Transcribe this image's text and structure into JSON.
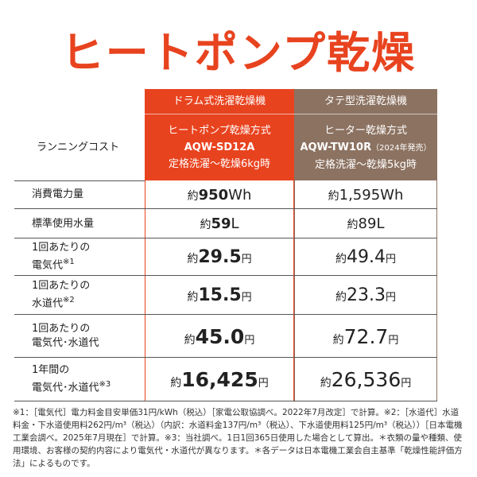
{
  "title": "ヒートポンプ乾燥",
  "table": {
    "corner": "ランニングコスト",
    "columns": [
      {
        "type": "ドラム式洗濯乾燥機",
        "method": "ヒートポンプ乾燥方式",
        "model": "AQW-SD12A",
        "condition": "定格洗濯～乾燥6kg時"
      },
      {
        "type": "タテ型洗濯乾燥機",
        "method": "ヒーター乾燥方式",
        "model": "AQW-TW10R",
        "model_note": "（2024年発売）",
        "condition": "定格洗濯～乾燥5kg時"
      }
    ],
    "rows": [
      {
        "label": [
          "消費電力量"
        ],
        "cells": [
          {
            "prefix": "約",
            "value": "950",
            "unit": "Wh"
          },
          {
            "prefix": "約",
            "value": "1,595",
            "unit": "Wh"
          }
        ]
      },
      {
        "label": [
          "標準使用水量"
        ],
        "cells": [
          {
            "prefix": "約",
            "value": "59",
            "unit": "L"
          },
          {
            "prefix": "約",
            "value": "89",
            "unit": "L"
          }
        ]
      },
      {
        "label": [
          "1回あたりの",
          "電気代"
        ],
        "note": "※1",
        "cells": [
          {
            "prefix": "約",
            "value": "29.5",
            "unit": "円"
          },
          {
            "prefix": "約",
            "value": "49.4",
            "unit": "円"
          }
        ]
      },
      {
        "label": [
          "1回あたりの",
          "水道代"
        ],
        "note": "※2",
        "cells": [
          {
            "prefix": "約",
            "value": "15.5",
            "unit": "円"
          },
          {
            "prefix": "約",
            "value": "23.3",
            "unit": "円"
          }
        ]
      },
      {
        "label": [
          "1回あたりの",
          "電気代･水道代"
        ],
        "cells": [
          {
            "prefix": "約",
            "value": "45.0",
            "unit": "円"
          },
          {
            "prefix": "約",
            "value": "72.7",
            "unit": "円"
          }
        ]
      },
      {
        "label": [
          "1年間の",
          "電気代･水道代"
        ],
        "note": "※3",
        "cells": [
          {
            "prefix": "約",
            "value": "16,425",
            "unit": "円"
          },
          {
            "prefix": "約",
            "value": "26,536",
            "unit": "円"
          }
        ]
      }
    ]
  },
  "footnote": "※1：［電気代］電力料金目安単価31円/kWh（税込）［家電公取協調べ。2022年7月改定］で計算。※2：［水道代］水道料金・下水道使用料262円/m³（税込）（内訳：水道料金137円/m³（税込）、下水道使用料125円/m³（税込））［日本電機工業会調べ。2025年7月現在］で計算。※3：当社調べ。1日1回365日使用した場合として算出。＊衣類の量や種類、使用環境、お客様の契約内容により電気代・水道代が異なります。＊各データは日本電機工業会自主基準「乾燥性能評価方法」によるものです。"
}
